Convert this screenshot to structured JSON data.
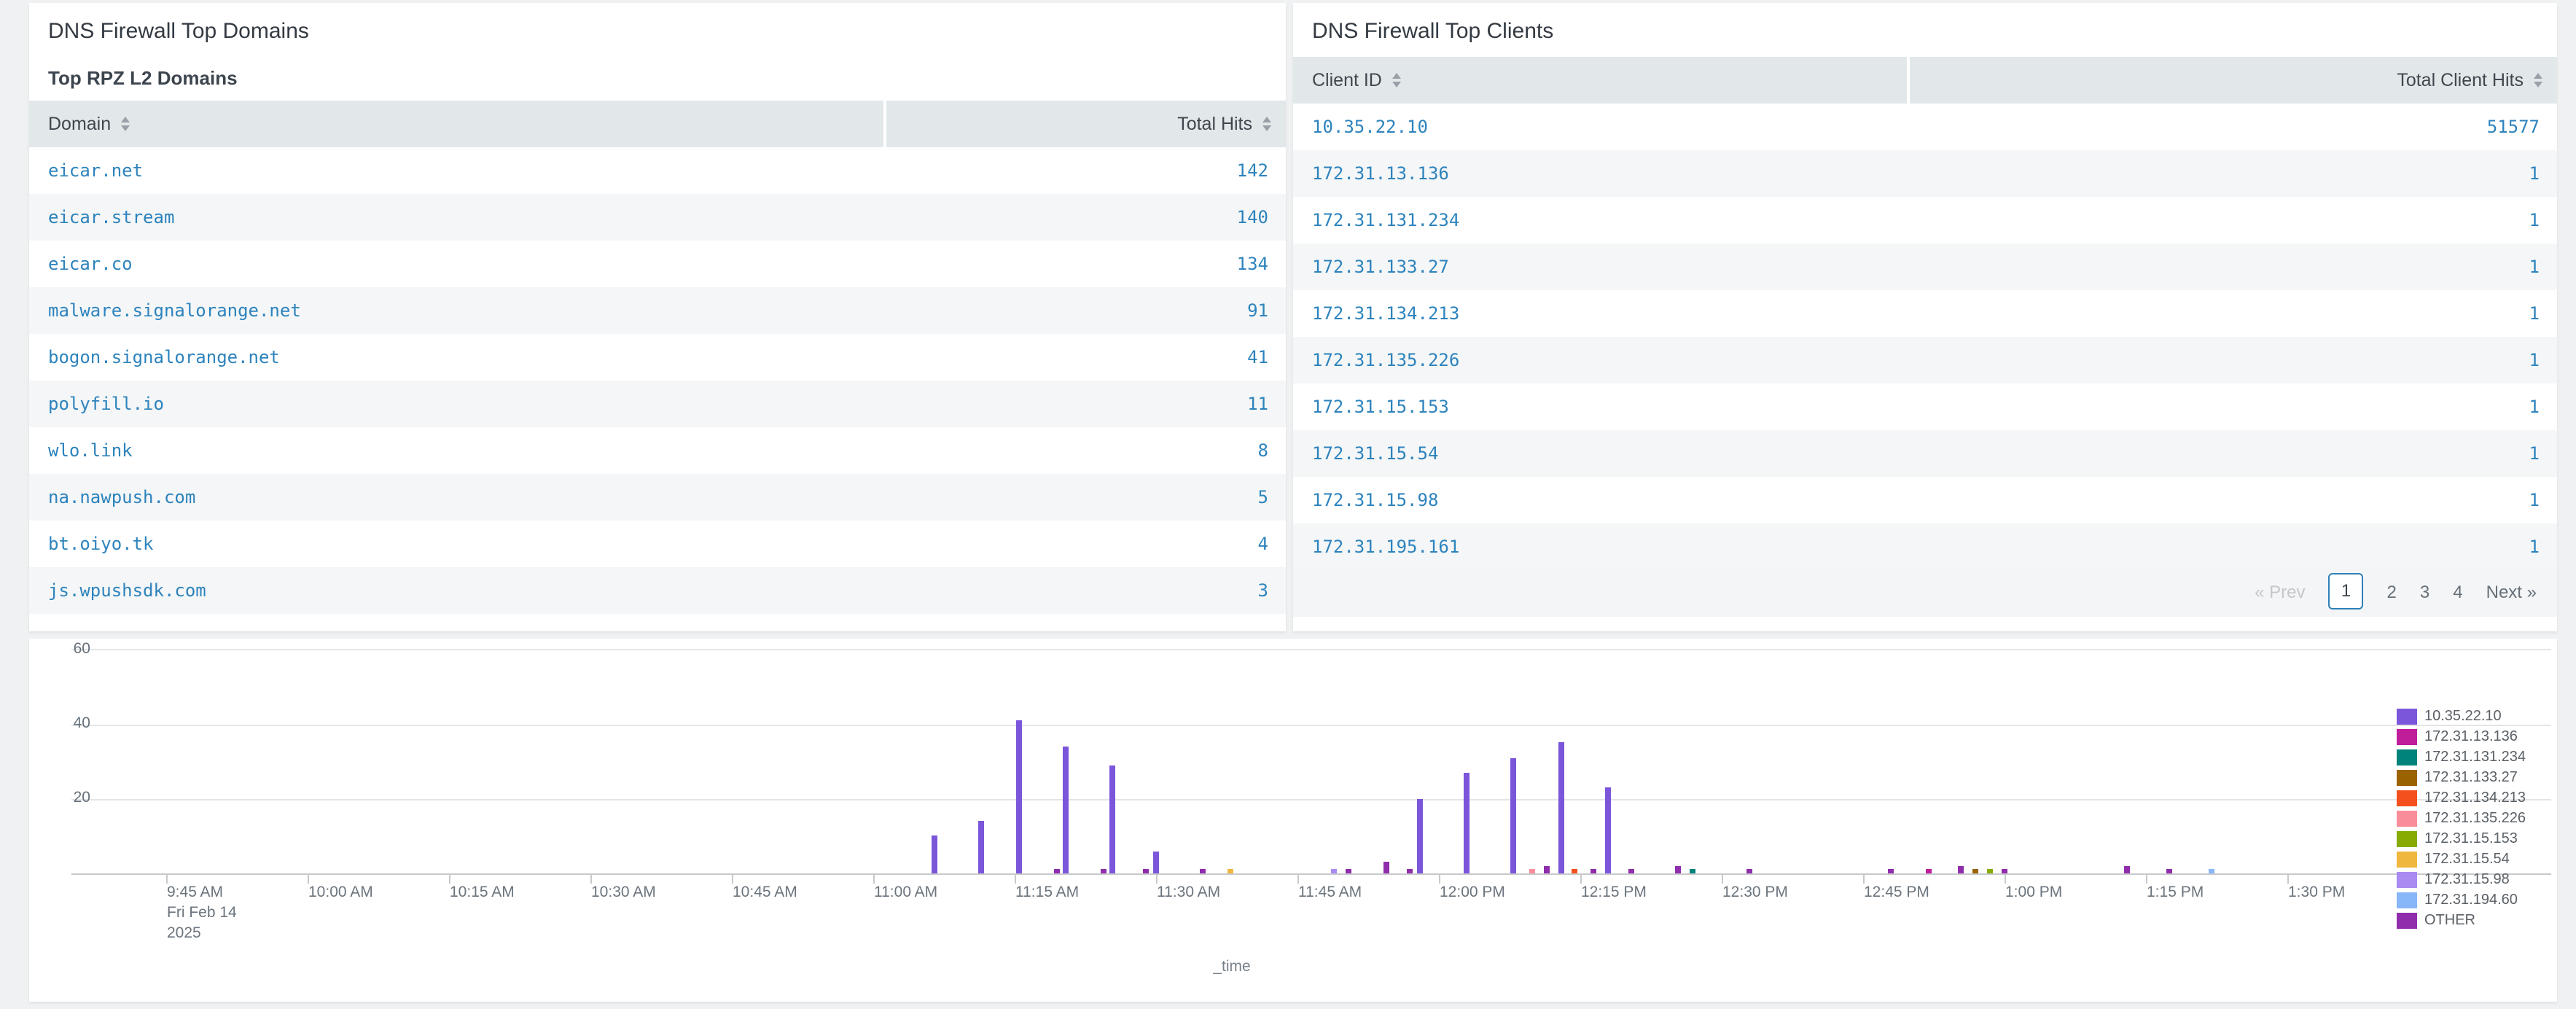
{
  "left_panel": {
    "title": "DNS Firewall Top Domains",
    "subtitle": "Top RPZ L2 Domains",
    "columns": [
      "Domain",
      "Total Hits"
    ],
    "rows": [
      [
        "eicar.net",
        "142"
      ],
      [
        "eicar.stream",
        "140"
      ],
      [
        "eicar.co",
        "134"
      ],
      [
        "malware.signalorange.net",
        "91"
      ],
      [
        "bogon.signalorange.net",
        "41"
      ],
      [
        "polyfill.io",
        "11"
      ],
      [
        "wlo.link",
        "8"
      ],
      [
        "na.nawpush.com",
        "5"
      ],
      [
        "bt.oiyo.tk",
        "4"
      ],
      [
        "js.wpushsdk.com",
        "3"
      ]
    ]
  },
  "right_panel": {
    "title": "DNS Firewall Top Clients",
    "columns": [
      "Client ID",
      "Total Client Hits"
    ],
    "rows": [
      [
        "10.35.22.10",
        "51577"
      ],
      [
        "172.31.13.136",
        "1"
      ],
      [
        "172.31.131.234",
        "1"
      ],
      [
        "172.31.133.27",
        "1"
      ],
      [
        "172.31.134.213",
        "1"
      ],
      [
        "172.31.135.226",
        "1"
      ],
      [
        "172.31.15.153",
        "1"
      ],
      [
        "172.31.15.54",
        "1"
      ],
      [
        "172.31.15.98",
        "1"
      ],
      [
        "172.31.195.161",
        "1"
      ]
    ],
    "pagination": {
      "prev_label": "« Prev",
      "pages": [
        "1",
        "2",
        "3",
        "4"
      ],
      "active_page": "1",
      "next_label": "Next »"
    }
  },
  "colors": {
    "link_blue": "#2d83bd",
    "header_bg": "#e2e7ea",
    "row_stripe": "#f4f6f7",
    "page_bg": "#eff1f2",
    "active_page_border": "#2e81b8"
  },
  "chart_data": {
    "type": "bar",
    "title": "",
    "xlabel": "_time",
    "ylabel": "",
    "ylim": [
      0,
      60
    ],
    "yticks": [
      20,
      40,
      60
    ],
    "grid": "horizontal",
    "legend_position": "right",
    "x_start_label": "9:45 AM",
    "x_tick_interval_minutes": 15,
    "xticks": [
      "9:45 AM",
      "10:00 AM",
      "10:15 AM",
      "10:30 AM",
      "10:45 AM",
      "11:00 AM",
      "11:15 AM",
      "11:30 AM",
      "11:45 AM",
      "12:00 PM",
      "12:15 PM",
      "12:30 PM",
      "12:45 PM",
      "1:00 PM",
      "1:15 PM",
      "1:30 PM"
    ],
    "x_date_lines": [
      "Fri Feb 14",
      "2025"
    ],
    "series": [
      {
        "name": "10.35.22.10",
        "color": "#7b56db",
        "points": [
          {
            "t": "11:06 AM",
            "m": 81.5,
            "v": 10
          },
          {
            "t": "11:11 AM",
            "m": 86.5,
            "v": 14
          },
          {
            "t": "11:15 AM",
            "m": 90.5,
            "v": 41
          },
          {
            "t": "11:20 AM",
            "m": 95.5,
            "v": 34
          },
          {
            "t": "11:25 AM",
            "m": 100.5,
            "v": 29
          },
          {
            "t": "11:30 AM",
            "m": 105,
            "v": 6
          },
          {
            "t": "11:58 AM",
            "m": 133,
            "v": 20
          },
          {
            "t": "12:03 PM",
            "m": 138,
            "v": 27
          },
          {
            "t": "12:08 PM",
            "m": 143,
            "v": 31
          },
          {
            "t": "12:13 PM",
            "m": 148,
            "v": 35
          },
          {
            "t": "12:18 PM",
            "m": 153,
            "v": 23
          }
        ]
      },
      {
        "name": "172.31.13.136",
        "color": "#c01d9b",
        "points": [
          {
            "t": "12:52 PM",
            "m": 187,
            "v": 1
          }
        ]
      },
      {
        "name": "172.31.131.234",
        "color": "#00837b",
        "points": [
          {
            "t": "12:27 PM",
            "m": 162,
            "v": 1
          }
        ]
      },
      {
        "name": "172.31.133.27",
        "color": "#9a6300",
        "points": [
          {
            "t": "12:57 PM",
            "m": 192,
            "v": 1
          }
        ]
      },
      {
        "name": "172.31.134.213",
        "color": "#f4501e",
        "points": [
          {
            "t": "12:14 PM",
            "m": 149.5,
            "v": 1
          }
        ]
      },
      {
        "name": "172.31.135.226",
        "color": "#fa8d9a",
        "points": [
          {
            "t": "12:10 PM",
            "m": 145,
            "v": 1
          }
        ]
      },
      {
        "name": "172.31.15.153",
        "color": "#87ab00",
        "points": [
          {
            "t": "12:58 PM",
            "m": 193.5,
            "v": 1
          }
        ]
      },
      {
        "name": "172.31.15.54",
        "color": "#f0b73f",
        "points": [
          {
            "t": "11:38 AM",
            "m": 113,
            "v": 1
          }
        ]
      },
      {
        "name": "172.31.15.98",
        "color": "#a98bf2",
        "points": [
          {
            "t": "11:49 AM",
            "m": 124,
            "v": 1
          }
        ]
      },
      {
        "name": "172.31.194.60",
        "color": "#87b6f9",
        "points": [
          {
            "t": "1:22 PM",
            "m": 217,
            "v": 1
          }
        ]
      },
      {
        "name": "OTHER",
        "color": "#8f2dac",
        "points": [
          {
            "t": "11:19 AM",
            "m": 94.5,
            "v": 1
          },
          {
            "t": "11:24 AM",
            "m": 99.5,
            "v": 1
          },
          {
            "t": "11:29 AM",
            "m": 104,
            "v": 1
          },
          {
            "t": "11:35 AM",
            "m": 110,
            "v": 1
          },
          {
            "t": "11:50 AM",
            "m": 125.5,
            "v": 1
          },
          {
            "t": "11:54 AM",
            "m": 129.5,
            "v": 3
          },
          {
            "t": "11:57 AM",
            "m": 132,
            "v": 1
          },
          {
            "t": "12:11 PM",
            "m": 146.5,
            "v": 2
          },
          {
            "t": "12:16 PM",
            "m": 151.5,
            "v": 1
          },
          {
            "t": "12:20 PM",
            "m": 155.5,
            "v": 1
          },
          {
            "t": "12:25 PM",
            "m": 160.5,
            "v": 2
          },
          {
            "t": "12:33 PM",
            "m": 168,
            "v": 1
          },
          {
            "t": "12:48 PM",
            "m": 183,
            "v": 1
          },
          {
            "t": "12:55 PM",
            "m": 190.5,
            "v": 2
          },
          {
            "t": "1:00 PM",
            "m": 195,
            "v": 1
          },
          {
            "t": "1:13 PM",
            "m": 208,
            "v": 2
          },
          {
            "t": "1:17 PM",
            "m": 212.5,
            "v": 1
          }
        ]
      }
    ]
  }
}
